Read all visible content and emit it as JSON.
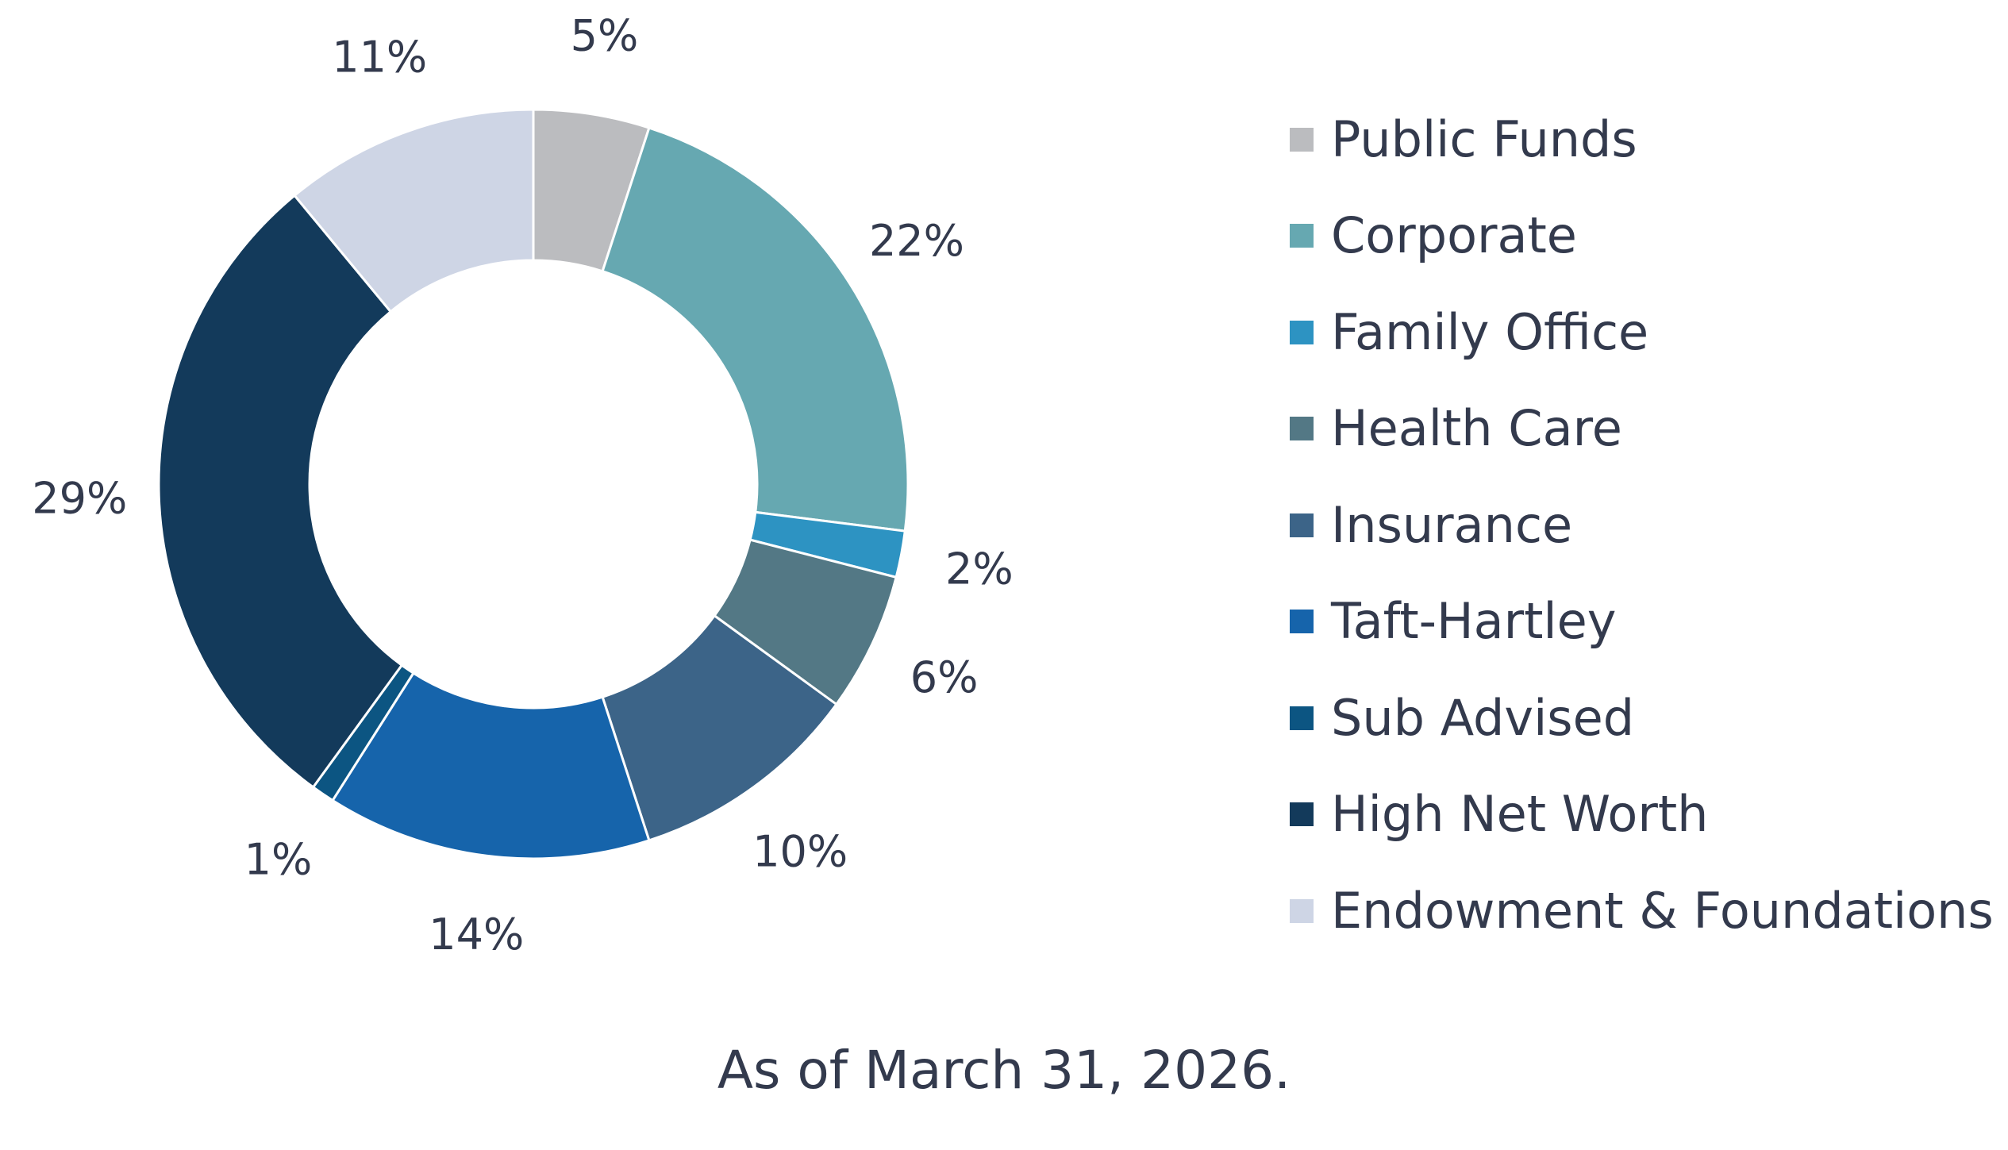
{
  "chart_data": {
    "type": "pie",
    "donut": true,
    "start_angle_deg": 0,
    "direction": "clockwise",
    "legend_position": "right",
    "slices": [
      {
        "label": "Public Funds",
        "value": 5,
        "display": "5%",
        "color": "#bbbcbf"
      },
      {
        "label": "Corporate",
        "value": 22,
        "display": "22%",
        "color": "#66a8b1"
      },
      {
        "label": "Family Office",
        "value": 2,
        "display": "2%",
        "color": "#2d93c2"
      },
      {
        "label": "Health Care",
        "value": 6,
        "display": "6%",
        "color": "#537885"
      },
      {
        "label": "Insurance",
        "value": 10,
        "display": "10%",
        "color": "#3c6488"
      },
      {
        "label": "Taft-Hartley",
        "value": 14,
        "display": "14%",
        "color": "#1664ab"
      },
      {
        "label": "Sub Advised",
        "value": 1,
        "display": "1%",
        "color": "#0c5582"
      },
      {
        "label": "High Net Worth",
        "value": 29,
        "display": "29%",
        "color": "#133a5b"
      },
      {
        "label": "Endowment & Foundations",
        "value": 11,
        "display": "11%",
        "color": "#ced5e5"
      }
    ]
  },
  "footnote": "As of March 31, 2026."
}
